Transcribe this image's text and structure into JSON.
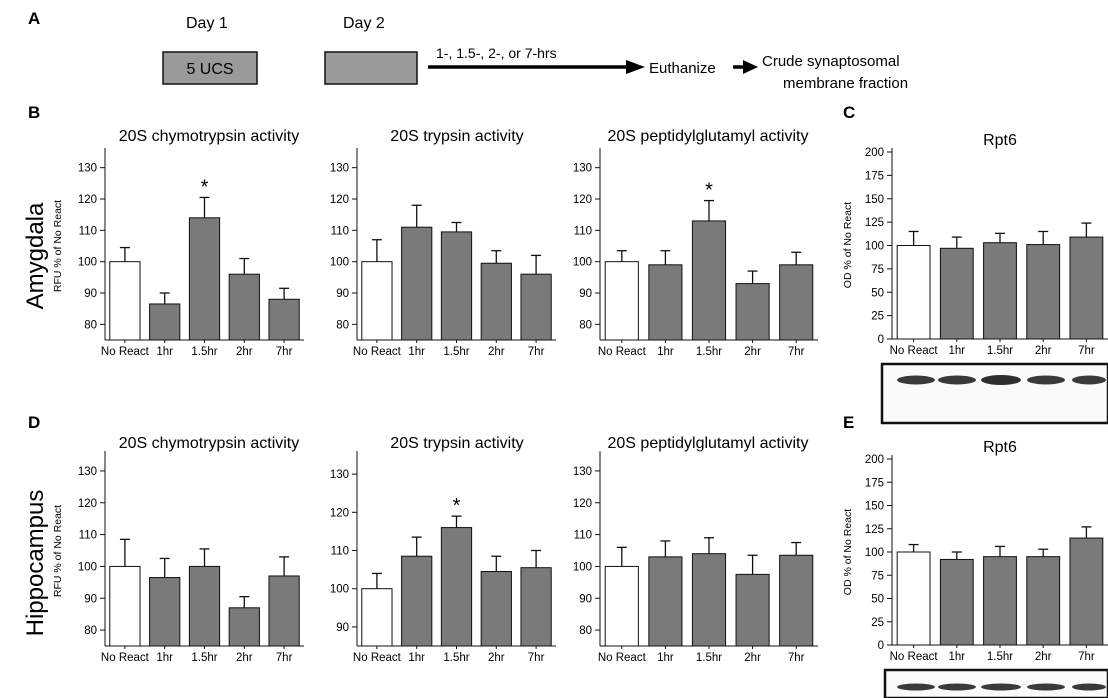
{
  "timeline": {
    "panel_letter": "A",
    "day1": "Day 1",
    "day2": "Day 2",
    "box1_label": "5 UCS",
    "interval": "1-, 1.5-, 2-, or 7-hrs",
    "euthanize": "Euthanize",
    "outcome_line1": "Crude synaptosomal",
    "outcome_line2": "membrane fraction"
  },
  "regions": [
    "Amygdala",
    "Hippocampus"
  ],
  "panel_letters": [
    "B",
    "C",
    "D",
    "E"
  ],
  "colors": {
    "control_fill": "#ffffff",
    "treated_fill": "#7a7a7a",
    "outline": "#111111",
    "blot_band": "#3a3a3a"
  },
  "chart_data": [
    {
      "type": "bar",
      "title": "20S chymotrypsin activity",
      "ylabel": "RFU % of No React",
      "categories": [
        "No React",
        "1hr",
        "1.5hr",
        "2hr",
        "7hr"
      ],
      "values": [
        100,
        86.5,
        114,
        96,
        88
      ],
      "errors": [
        4.5,
        3.5,
        6.5,
        5,
        3.5
      ],
      "ylim": [
        75,
        135
      ],
      "yticks": [
        80,
        90,
        100,
        110,
        120,
        130
      ],
      "significant": [
        2
      ],
      "star": "*"
    },
    {
      "type": "bar",
      "title": "20S trypsin activity",
      "ylabel": "",
      "categories": [
        "No React",
        "1hr",
        "1.5hr",
        "2hr",
        "7hr"
      ],
      "values": [
        100,
        111,
        109.5,
        99.5,
        96
      ],
      "errors": [
        7,
        7,
        3,
        4,
        6
      ],
      "ylim": [
        75,
        135
      ],
      "yticks": [
        80,
        90,
        100,
        110,
        120,
        130
      ],
      "significant": [],
      "star": "*"
    },
    {
      "type": "bar",
      "title": "20S peptidylglutamyl activity",
      "ylabel": "",
      "categories": [
        "No React",
        "1hr",
        "1.5hr",
        "2hr",
        "7hr"
      ],
      "values": [
        100,
        99,
        113,
        93,
        99
      ],
      "errors": [
        3.5,
        4.5,
        6.5,
        4,
        4
      ],
      "ylim": [
        75,
        135
      ],
      "yticks": [
        80,
        90,
        100,
        110,
        120,
        130
      ],
      "significant": [
        2
      ],
      "star": "*"
    },
    {
      "type": "bar",
      "title": "Rpt6",
      "ylabel": "OD % of No React",
      "categories": [
        "No React",
        "1hr",
        "1.5hr",
        "2hr",
        "7hr"
      ],
      "values": [
        100,
        97,
        103,
        101,
        109
      ],
      "errors": [
        15,
        12,
        10,
        14,
        15
      ],
      "ylim": [
        0,
        200
      ],
      "yticks": [
        0,
        25,
        50,
        75,
        100,
        125,
        150,
        175,
        200
      ],
      "significant": [],
      "star": "*"
    },
    {
      "type": "bar",
      "title": "20S chymotrypsin activity",
      "ylabel": "RFU % of No React",
      "categories": [
        "No React",
        "1hr",
        "1.5hr",
        "2hr",
        "7hr"
      ],
      "values": [
        100,
        96.5,
        100,
        87,
        97
      ],
      "errors": [
        8.5,
        6,
        5.5,
        3.5,
        6
      ],
      "ylim": [
        75,
        135
      ],
      "yticks": [
        80,
        90,
        100,
        110,
        120,
        130
      ],
      "significant": [],
      "star": "*"
    },
    {
      "type": "bar",
      "title": "20S trypsin activity",
      "ylabel": "",
      "categories": [
        "No React",
        "1hr",
        "1.5hr",
        "2hr",
        "7hr"
      ],
      "values": [
        100,
        108.5,
        116,
        104.5,
        105.5
      ],
      "errors": [
        4,
        5,
        3,
        4,
        4.5
      ],
      "ylim": [
        85,
        135
      ],
      "yticks": [
        90,
        100,
        110,
        120,
        130
      ],
      "significant": [
        2
      ],
      "star": "*"
    },
    {
      "type": "bar",
      "title": "20S peptidylglutamyl activity",
      "ylabel": "",
      "categories": [
        "No React",
        "1hr",
        "1.5hr",
        "2hr",
        "7hr"
      ],
      "values": [
        100,
        103,
        104,
        97.5,
        103.5
      ],
      "errors": [
        6,
        5,
        5,
        6,
        4
      ],
      "ylim": [
        75,
        135
      ],
      "yticks": [
        80,
        90,
        100,
        110,
        120,
        130
      ],
      "significant": [],
      "star": "*"
    },
    {
      "type": "bar",
      "title": "Rpt6",
      "ylabel": "OD % of No React",
      "categories": [
        "No React",
        "1hr",
        "1.5hr",
        "2hr",
        "7hr"
      ],
      "values": [
        100,
        92,
        95,
        95,
        115
      ],
      "errors": [
        8,
        8,
        11,
        8,
        12
      ],
      "ylim": [
        0,
        200
      ],
      "yticks": [
        0,
        25,
        50,
        75,
        100,
        125,
        150,
        175,
        200
      ],
      "significant": [],
      "star": "*"
    }
  ]
}
